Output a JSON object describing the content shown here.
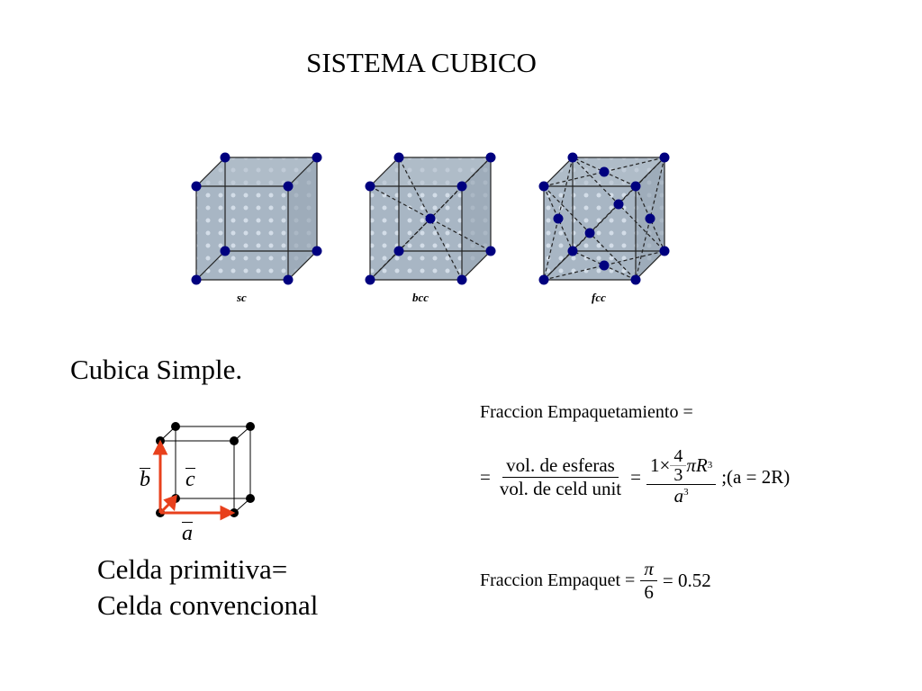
{
  "slide": {
    "title": "SISTEMA CUBICO",
    "subtitle": "Cubica Simple.",
    "caption_line1": "Celda primitiva=",
    "caption_line2": "Celda convencional"
  },
  "lattices": [
    {
      "label": "sc"
    },
    {
      "label": "bcc"
    },
    {
      "label": "fcc"
    }
  ],
  "colors": {
    "atom": "#00007f",
    "cube_face": "#a9b7c6",
    "arrow": "#e8401c"
  },
  "vectors": {
    "a": "a",
    "b": "b",
    "c": "c"
  },
  "formula": {
    "line1": "Fraccion Empaquetamiento =",
    "eq1": "=",
    "num1": "vol. de esferas",
    "den1": "vol. de celd unit",
    "eq2": "=",
    "num2_prefix": "1×",
    "num2_frac_num": "4",
    "num2_frac_den": "3",
    "num2_suffix": "πR",
    "num2_exp": "3",
    "den2": "a",
    "den2_exp": "3",
    "condition": ";(a = 2R)",
    "result_label": "Fraccion Empaquet =",
    "result_num": "π",
    "result_den": "6",
    "result_value": "= 0.52"
  }
}
